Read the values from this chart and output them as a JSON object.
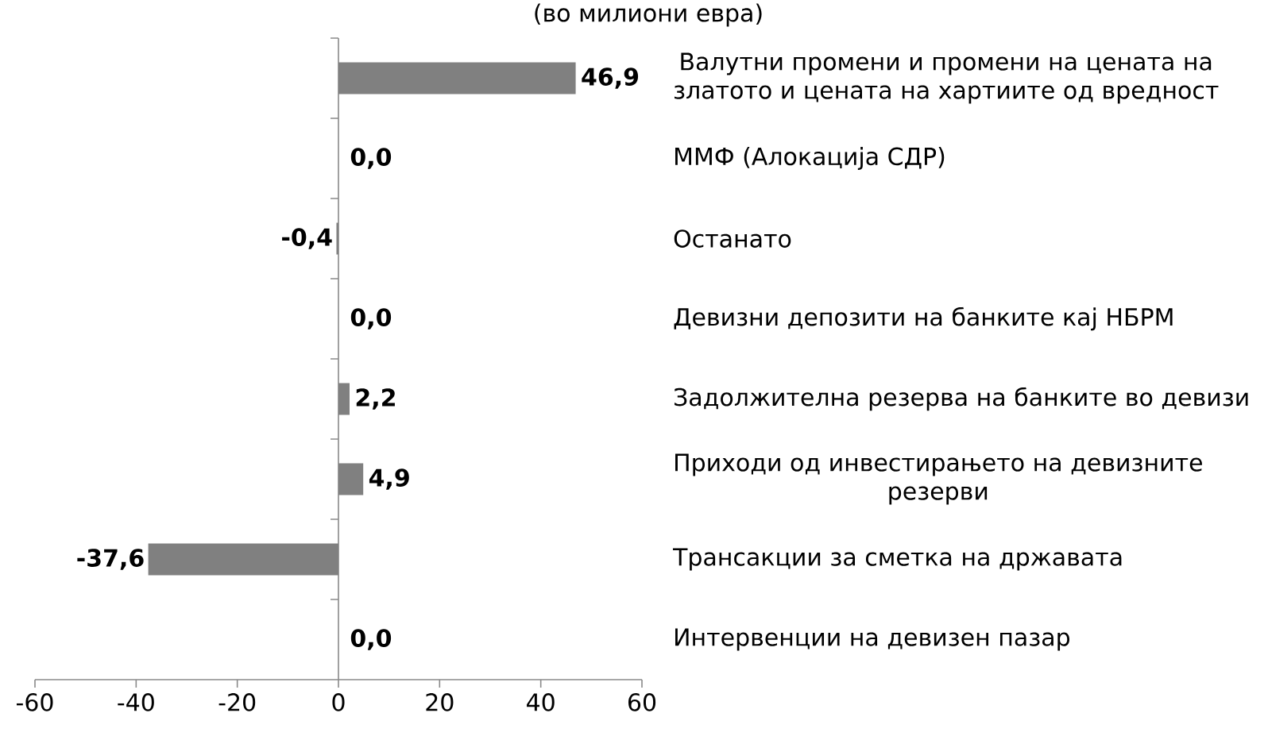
{
  "chart_data": {
    "type": "bar",
    "orientation": "horizontal",
    "title": "(во милиони евра)",
    "categories": [
      "Валутни промени и промени на цената на златото и цената на хартиите од вредност",
      "ММФ (Алокација СДР)",
      "Останато",
      "Девизни депозити на банките кај НБРМ",
      "Задолжителна резерва на банките во девизи",
      "Приходи од инвестирањето на девизните резерви",
      "Трансакции за сметка на државата",
      "Интервенции на девизен пазар"
    ],
    "values": [
      46.9,
      0.0,
      -0.4,
      0.0,
      2.2,
      4.9,
      -37.6,
      0.0
    ],
    "value_labels": [
      "46,9",
      "0,0",
      "-0,4",
      "0,0",
      "2,2",
      "4,9",
      "-37,6",
      "0,0"
    ],
    "color": "#808080",
    "xlim": [
      -60,
      60
    ],
    "xticks": [
      -60,
      -40,
      -20,
      0,
      20,
      40,
      60
    ]
  }
}
